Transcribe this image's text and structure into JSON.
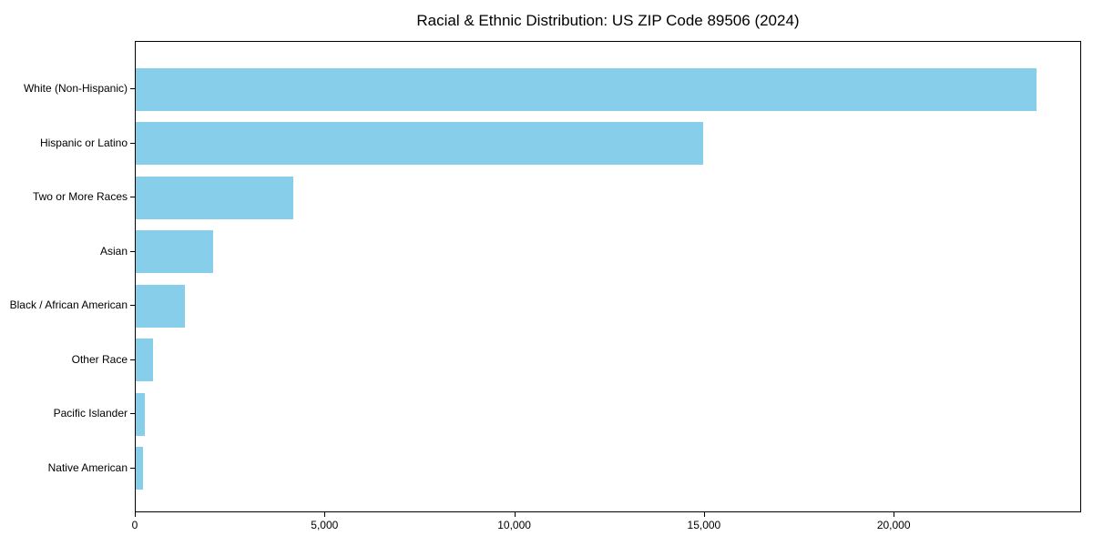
{
  "chart_data": {
    "type": "bar",
    "orientation": "horizontal",
    "title": "Racial & Ethnic Distribution: US ZIP Code 89506 (2024)",
    "categories": [
      "White (Non-Hispanic)",
      "Hispanic or Latino",
      "Two or More Races",
      "Asian",
      "Black / African American",
      "Other Race",
      "Pacific Islander",
      "Native American"
    ],
    "values": [
      23750,
      14950,
      4150,
      2030,
      1290,
      450,
      230,
      200
    ],
    "xlabel": "",
    "ylabel": "",
    "xlim": [
      0,
      24940
    ],
    "xticks": [
      0,
      5000,
      10000,
      15000,
      20000
    ],
    "xtick_labels": [
      "0",
      "5,000",
      "10,000",
      "15,000",
      "20,000"
    ],
    "bar_color": "#87CEEB",
    "background_color": "#ffffff",
    "spine_color": "#000000",
    "grid": false,
    "legend": null
  }
}
